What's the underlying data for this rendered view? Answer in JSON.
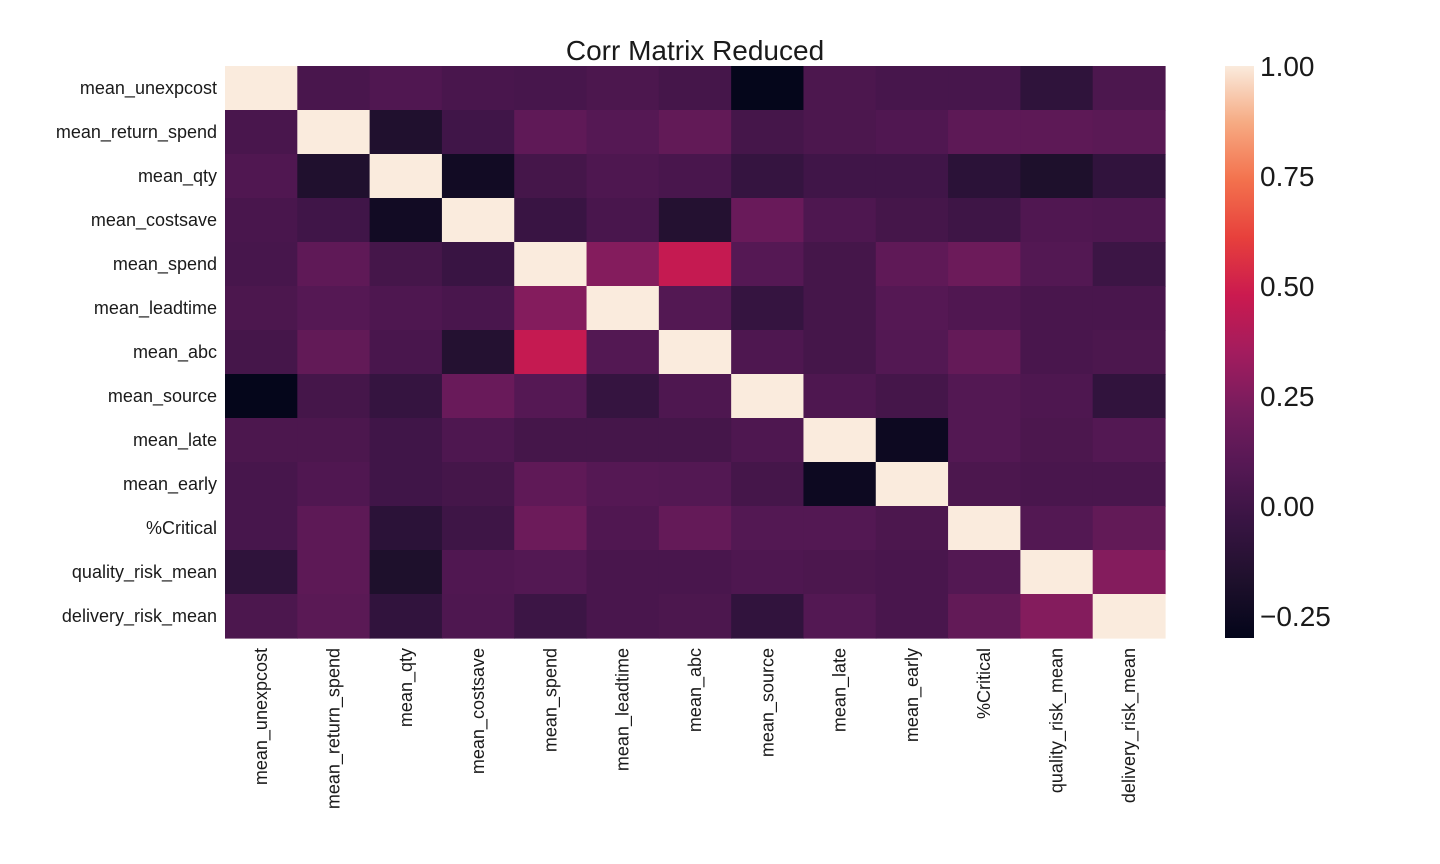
{
  "chart_data": {
    "type": "heatmap",
    "title": "Corr Matrix Reduced",
    "rows": [
      "mean_unexpcost",
      "mean_return_spend",
      "mean_qty",
      "mean_costsave",
      "mean_spend",
      "mean_leadtime",
      "mean_abc",
      "mean_source",
      "mean_late",
      "mean_early",
      "%Critical",
      "quality_risk_mean",
      "delivery_risk_mean"
    ],
    "columns": [
      "mean_unexpcost",
      "mean_return_spend",
      "mean_qty",
      "mean_costsave",
      "mean_spend",
      "mean_leadtime",
      "mean_abc",
      "mean_source",
      "mean_late",
      "mean_early",
      "%Critical",
      "quality_risk_mean",
      "delivery_risk_mean"
    ],
    "values": [
      [
        1.0,
        0.04,
        0.07,
        0.04,
        0.03,
        0.05,
        0.02,
        -0.29,
        0.05,
        0.03,
        0.03,
        -0.08,
        0.05
      ],
      [
        0.04,
        1.0,
        -0.16,
        0.0,
        0.13,
        0.09,
        0.14,
        0.02,
        0.05,
        0.07,
        0.12,
        0.12,
        0.11
      ],
      [
        0.07,
        -0.16,
        1.0,
        -0.23,
        0.02,
        0.06,
        0.04,
        -0.05,
        0.0,
        0.0,
        -0.1,
        -0.17,
        -0.07
      ],
      [
        0.04,
        0.0,
        -0.23,
        1.0,
        -0.03,
        0.04,
        -0.14,
        0.17,
        0.06,
        0.02,
        -0.01,
        0.07,
        0.06
      ],
      [
        0.03,
        0.13,
        0.02,
        -0.03,
        1.0,
        0.26,
        0.46,
        0.09,
        0.02,
        0.13,
        0.18,
        0.08,
        -0.02
      ],
      [
        0.05,
        0.09,
        0.06,
        0.04,
        0.26,
        1.0,
        0.08,
        -0.05,
        0.02,
        0.09,
        0.07,
        0.04,
        0.04
      ],
      [
        0.02,
        0.14,
        0.04,
        -0.14,
        0.46,
        0.08,
        1.0,
        0.06,
        0.02,
        0.08,
        0.15,
        0.04,
        0.05
      ],
      [
        -0.29,
        0.02,
        -0.05,
        0.17,
        0.09,
        -0.05,
        0.06,
        1.0,
        0.06,
        0.02,
        0.08,
        0.06,
        -0.07
      ],
      [
        0.05,
        0.05,
        0.0,
        0.06,
        0.02,
        0.02,
        0.02,
        0.06,
        1.0,
        -0.25,
        0.08,
        0.05,
        0.08
      ],
      [
        0.03,
        0.07,
        0.0,
        0.02,
        0.13,
        0.09,
        0.08,
        0.02,
        -0.25,
        1.0,
        0.05,
        0.04,
        0.04
      ],
      [
        0.03,
        0.12,
        -0.1,
        -0.01,
        0.18,
        0.07,
        0.15,
        0.08,
        0.08,
        0.05,
        1.0,
        0.08,
        0.14
      ],
      [
        -0.08,
        0.12,
        -0.17,
        0.07,
        0.08,
        0.04,
        0.04,
        0.06,
        0.05,
        0.04,
        0.08,
        1.0,
        0.26
      ],
      [
        0.05,
        0.11,
        -0.07,
        0.06,
        -0.02,
        0.04,
        0.05,
        -0.07,
        0.08,
        0.04,
        0.14,
        0.26,
        1.0
      ]
    ],
    "vmin": -0.3,
    "vmax": 1.0,
    "colormap": "rocket",
    "colorbar_ticks": [
      1.0,
      0.75,
      0.5,
      0.25,
      0.0,
      -0.25
    ],
    "colorbar_tick_labels": [
      "1.00",
      "0.75",
      "0.50",
      "0.25",
      "0.00",
      "−0.25"
    ],
    "grid": false
  }
}
